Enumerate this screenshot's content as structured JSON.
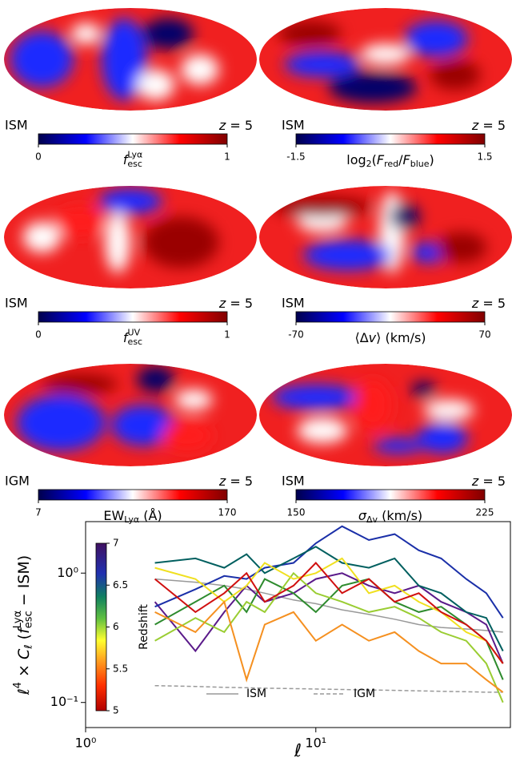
{
  "maps": [
    {
      "left_label": "ISM",
      "right_label": [
        {
          "text": "z",
          "style": "italic"
        },
        {
          "text": " = 5"
        }
      ],
      "colorbar": {
        "min": 0,
        "max": 1,
        "label": [
          {
            "text": "f",
            "style": "italic"
          },
          {
            "text": "Lyα",
            "style": "sup"
          },
          {
            "text": "esc",
            "style": "sub"
          }
        ]
      }
    },
    {
      "left_label": "ISM",
      "right_label": [
        {
          "text": "z",
          "style": "italic"
        },
        {
          "text": " = 5"
        }
      ],
      "colorbar": {
        "min": -1.5,
        "max": 1.5,
        "label": [
          {
            "text": "log"
          },
          {
            "text": "2",
            "style": "sub"
          },
          {
            "text": "("
          },
          {
            "text": "F",
            "style": "italic"
          },
          {
            "text": "red",
            "style": "sub"
          },
          {
            "text": "/"
          },
          {
            "text": "F",
            "style": "italic"
          },
          {
            "text": "blue",
            "style": "sub"
          },
          {
            "text": ")"
          }
        ]
      }
    },
    {
      "left_label": "ISM",
      "right_label": [
        {
          "text": "z",
          "style": "italic"
        },
        {
          "text": " = 5"
        }
      ],
      "colorbar": {
        "min": 0,
        "max": 1,
        "label": [
          {
            "text": "f",
            "style": "italic"
          },
          {
            "text": "UV",
            "style": "sup"
          },
          {
            "text": "esc",
            "style": "sub"
          }
        ]
      }
    },
    {
      "left_label": "ISM",
      "right_label": [
        {
          "text": "z",
          "style": "italic"
        },
        {
          "text": " = 5"
        }
      ],
      "colorbar": {
        "min": -70,
        "max": 70,
        "label": [
          {
            "text": "⟨Δ"
          },
          {
            "text": "v",
            "style": "italic"
          },
          {
            "text": "⟩  (km/s)"
          }
        ]
      }
    },
    {
      "left_label": "IGM",
      "right_label": [
        {
          "text": "z",
          "style": "italic"
        },
        {
          "text": " = 5"
        }
      ],
      "colorbar": {
        "min": 7,
        "max": 170,
        "label": [
          {
            "text": "EW"
          },
          {
            "text": "Lyα",
            "style": "sub"
          },
          {
            "text": "  (Å)"
          }
        ]
      }
    },
    {
      "left_label": "ISM",
      "right_label": [
        {
          "text": "z",
          "style": "italic"
        },
        {
          "text": " = 5"
        }
      ],
      "colorbar": {
        "min": 150,
        "max": 225,
        "label": [
          {
            "text": "σ",
            "style": "italic"
          },
          {
            "text": "Δv",
            "style": "sub"
          },
          {
            "text": "  (km/s)"
          }
        ]
      }
    }
  ],
  "chart_data": {
    "type": "line",
    "log_x": true,
    "log_y": true,
    "x_label": [
      {
        "text": "ℓ",
        "style": "italic"
      }
    ],
    "y_label": [
      {
        "text": "ℓ",
        "style": "italic"
      },
      {
        "text": "4",
        "style": "sup"
      },
      {
        "text": " × "
      },
      {
        "text": "C",
        "style": "italic"
      },
      {
        "text": "ℓ",
        "style": "sub"
      },
      {
        "text": "  ("
      },
      {
        "text": "f",
        "style": "italic"
      },
      {
        "text": "Lyα",
        "style": "sup"
      },
      {
        "text": "esc",
        "style": "sub"
      },
      {
        "text": " − ISM)"
      }
    ],
    "x": [
      2,
      3,
      4,
      5,
      6,
      8,
      10,
      13,
      17,
      22,
      28,
      35,
      45,
      55,
      65
    ],
    "xlim": [
      1,
      70
    ],
    "ylim": [
      0.064,
      2.5
    ],
    "xticks": [
      {
        "value": 1,
        "label": "10⁰"
      },
      {
        "value": 10,
        "label": "10¹"
      }
    ],
    "yticks": [
      {
        "value": 0.1,
        "label": "10⁻¹"
      },
      {
        "value": 1,
        "label": "10⁰"
      }
    ],
    "colorbar": {
      "label": "Redshift",
      "lim": [
        5,
        7
      ],
      "ticks": [
        5,
        5.5,
        6,
        6.5,
        7
      ]
    },
    "series": [
      {
        "name": "ISM",
        "color": "#999999",
        "dash": false,
        "values": [
          0.9,
          0.85,
          0.8,
          0.75,
          0.7,
          0.62,
          0.58,
          0.52,
          0.48,
          0.44,
          0.4,
          0.38,
          0.37,
          0.36,
          0.35
        ]
      },
      {
        "name": "IGM",
        "color": "#999999",
        "dash": true,
        "values": [
          0.135,
          0.133,
          0.131,
          0.13,
          0.129,
          0.128,
          0.127,
          0.126,
          0.125,
          0.124,
          0.123,
          0.122,
          0.121,
          0.12,
          0.12
        ]
      },
      {
        "color": "#5a1a8a",
        "values": [
          0.6,
          0.25,
          0.5,
          0.8,
          0.6,
          0.7,
          0.9,
          1.0,
          0.8,
          0.7,
          0.8,
          0.6,
          0.5,
          0.4,
          0.2
        ]
      },
      {
        "color": "#1a2fa8",
        "values": [
          0.55,
          0.75,
          0.95,
          0.9,
          1.1,
          1.2,
          1.7,
          2.3,
          1.8,
          2.0,
          1.5,
          1.3,
          0.9,
          0.7,
          0.45
        ]
      },
      {
        "color": "#005f5f",
        "values": [
          1.2,
          1.3,
          1.1,
          1.4,
          1.0,
          1.3,
          1.6,
          1.2,
          1.1,
          1.3,
          0.8,
          0.7,
          0.5,
          0.45,
          0.25
        ]
      },
      {
        "color": "#2e8b2e",
        "values": [
          0.4,
          0.6,
          0.8,
          0.5,
          0.9,
          0.7,
          0.5,
          0.8,
          0.9,
          0.6,
          0.5,
          0.55,
          0.4,
          0.3,
          0.15
        ]
      },
      {
        "color": "#9acd32",
        "values": [
          0.3,
          0.45,
          0.35,
          0.6,
          0.5,
          1.0,
          0.7,
          0.6,
          0.5,
          0.55,
          0.45,
          0.35,
          0.3,
          0.2,
          0.1
        ]
      },
      {
        "color": "#f0e020",
        "values": [
          1.1,
          0.9,
          0.6,
          0.8,
          1.2,
          0.9,
          1.0,
          1.3,
          0.7,
          0.8,
          0.6,
          0.5,
          0.35,
          0.3,
          0.2
        ]
      },
      {
        "color": "#f59020",
        "values": [
          0.5,
          0.35,
          0.6,
          0.15,
          0.4,
          0.5,
          0.3,
          0.4,
          0.3,
          0.35,
          0.25,
          0.2,
          0.2,
          0.15,
          0.12
        ]
      },
      {
        "color": "#d01010",
        "values": [
          0.9,
          0.5,
          0.7,
          1.0,
          0.6,
          0.8,
          1.2,
          0.7,
          0.9,
          0.6,
          0.7,
          0.5,
          0.4,
          0.3,
          0.2
        ]
      }
    ]
  }
}
